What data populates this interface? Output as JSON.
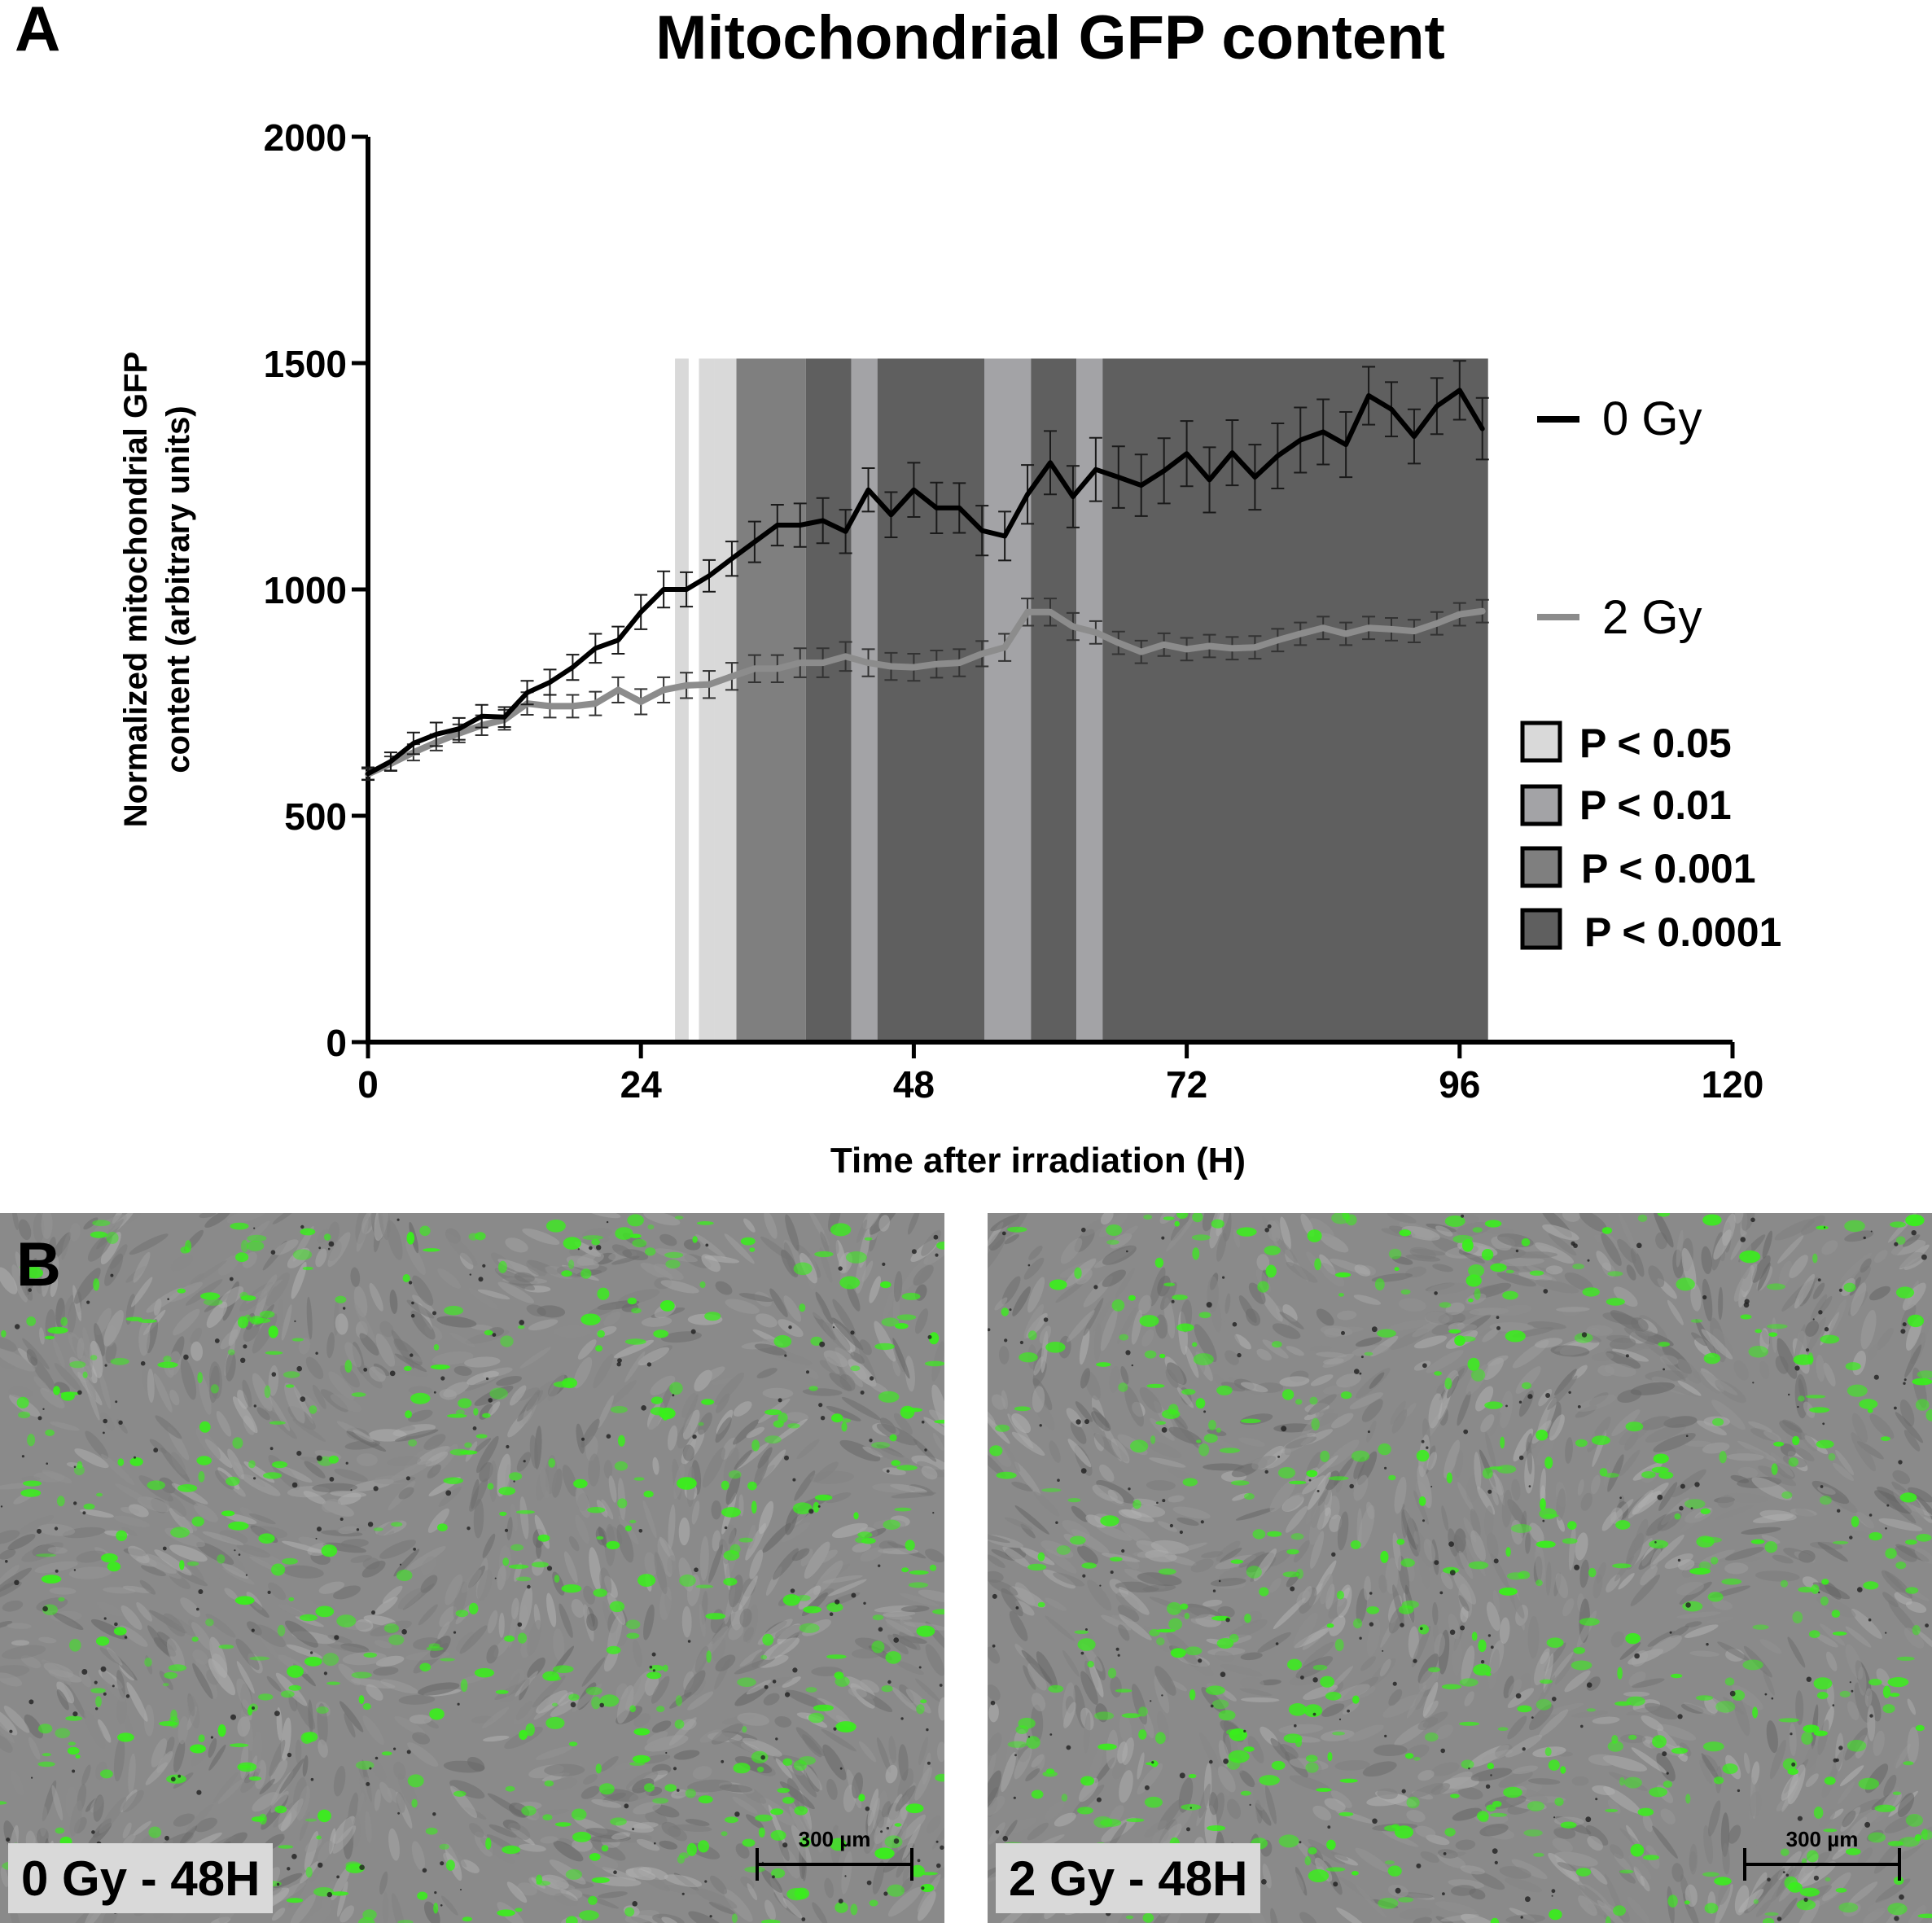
{
  "panel_a_letter": "A",
  "panel_b_letter": "B",
  "colors": {
    "series_0gy": "#000000",
    "series_2gy": "#8c8c8c",
    "p05": "#d9d9d9",
    "p01": "#a3a3a6",
    "p001": "#7f7f7f",
    "p0001": "#5f5f5f",
    "green": "#38f01a"
  },
  "chart_data": {
    "type": "line",
    "title": "Mitochondrial GFP content",
    "xlabel": "Time after irradiation (H)",
    "ylabel_lines": [
      "Normalized mitochondrial GFP",
      "content (arbitrary units)"
    ],
    "xlim": [
      0,
      120
    ],
    "ylim": [
      0,
      2000
    ],
    "xticks": [
      0,
      24,
      48,
      72,
      96,
      120
    ],
    "yticks": [
      0,
      500,
      1000,
      1500,
      2000
    ],
    "x": [
      0,
      2,
      4,
      6,
      8,
      10,
      12,
      14,
      16,
      18,
      20,
      22,
      24,
      26,
      28,
      30,
      32,
      34,
      36,
      38,
      40,
      42,
      44,
      46,
      48,
      50,
      52,
      54,
      56,
      58,
      60,
      62,
      64,
      66,
      68,
      70,
      72,
      74,
      76,
      78,
      80,
      82,
      84,
      86,
      88,
      90,
      92,
      94,
      96,
      98
    ],
    "series": [
      {
        "name": "0 Gy",
        "values": [
          593,
          620,
          660,
          680,
          692,
          720,
          718,
          772,
          795,
          828,
          870,
          888,
          950,
          1000,
          1000,
          1030,
          1068,
          1105,
          1142,
          1142,
          1152,
          1128,
          1220,
          1165,
          1220,
          1180,
          1180,
          1130,
          1118,
          1210,
          1280,
          1205,
          1265,
          1248,
          1230,
          1262,
          1300,
          1242,
          1302,
          1248,
          1295,
          1330,
          1348,
          1320,
          1428,
          1398,
          1338,
          1405,
          1440,
          1355
        ],
        "errors": [
          14,
          20,
          24,
          26,
          24,
          25,
          22,
          26,
          28,
          28,
          32,
          30,
          38,
          40,
          38,
          35,
          38,
          45,
          45,
          48,
          50,
          48,
          48,
          50,
          60,
          56,
          55,
          55,
          54,
          65,
          70,
          68,
          70,
          68,
          68,
          72,
          72,
          72,
          72,
          72,
          72,
          72,
          72,
          72,
          64,
          60,
          60,
          62,
          65,
          68
        ]
      },
      {
        "name": "2 Gy",
        "values": [
          592,
          615,
          640,
          662,
          682,
          700,
          712,
          748,
          742,
          742,
          748,
          778,
          752,
          778,
          788,
          790,
          808,
          825,
          825,
          838,
          838,
          852,
          838,
          830,
          828,
          835,
          838,
          858,
          872,
          950,
          950,
          918,
          905,
          882,
          862,
          878,
          868,
          875,
          870,
          872,
          888,
          902,
          915,
          902,
          915,
          912,
          908,
          925,
          945,
          952
        ],
        "errors": [
          12,
          16,
          18,
          18,
          20,
          22,
          22,
          25,
          25,
          25,
          26,
          28,
          28,
          28,
          28,
          30,
          30,
          30,
          30,
          32,
          32,
          32,
          30,
          30,
          30,
          30,
          30,
          28,
          30,
          30,
          30,
          30,
          25,
          25,
          25,
          25,
          25,
          25,
          25,
          25,
          25,
          25,
          25,
          25,
          25,
          25,
          25,
          25,
          25,
          25
        ]
      }
    ],
    "significance_bands": [
      {
        "x0": 27.0,
        "x1": 28.2,
        "level": "P < 0.05"
      },
      {
        "x0": 29.1,
        "x1": 30.5,
        "level": "P < 0.05"
      },
      {
        "x0": 30.5,
        "x1": 32.4,
        "level": "P < 0.05"
      },
      {
        "x0": 32.4,
        "x1": 38.5,
        "level": "P < 0.001"
      },
      {
        "x0": 38.5,
        "x1": 42.5,
        "level": "P < 0.0001"
      },
      {
        "x0": 42.5,
        "x1": 44.8,
        "level": "P < 0.01"
      },
      {
        "x0": 44.8,
        "x1": 54.2,
        "level": "P < 0.0001"
      },
      {
        "x0": 54.2,
        "x1": 58.3,
        "level": "P < 0.01"
      },
      {
        "x0": 58.3,
        "x1": 62.3,
        "level": "P < 0.0001"
      },
      {
        "x0": 62.3,
        "x1": 64.6,
        "level": "P < 0.01"
      },
      {
        "x0": 64.6,
        "x1": 98.5,
        "level": "P < 0.0001"
      }
    ],
    "band_top": 1510,
    "legend_series": [
      "0 Gy",
      "2 Gy"
    ],
    "legend_significance": [
      "P < 0.05",
      "P < 0.01",
      "P < 0.001",
      "P < 0.0001"
    ]
  },
  "images": [
    {
      "caption": "0 Gy - 48H",
      "scale_label": "300 µm"
    },
    {
      "caption": "2 Gy - 48H",
      "scale_label": "300 µm"
    }
  ]
}
